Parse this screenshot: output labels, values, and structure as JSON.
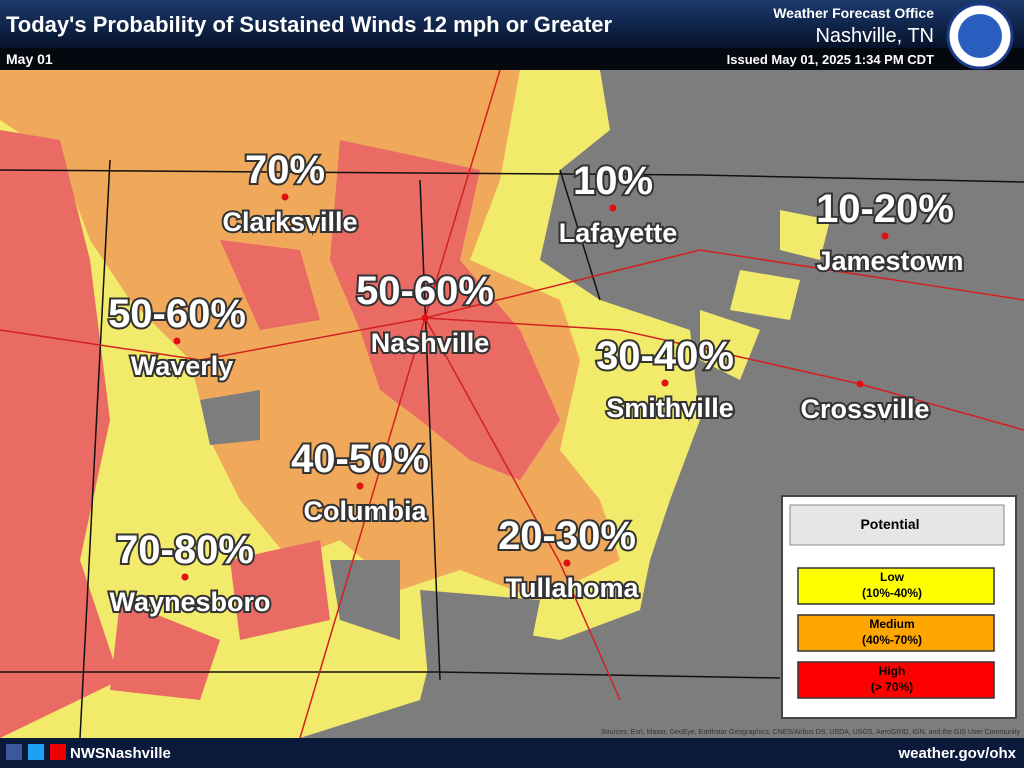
{
  "header": {
    "title": "Today's Probability of Sustained Winds 12 mph or Greater",
    "date": "May 01",
    "office": "Weather Forecast Office",
    "location": "Nashville, TN",
    "issued": "Issued May 01, 2025 1:34 PM CDT"
  },
  "cities": [
    {
      "name": "Clarksville",
      "probability": "70%"
    },
    {
      "name": "Lafayette",
      "probability": "10%"
    },
    {
      "name": "Jamestown",
      "probability": "10-20%"
    },
    {
      "name": "Nashville",
      "probability": "50-60%"
    },
    {
      "name": "Waverly",
      "probability": "50-60%"
    },
    {
      "name": "Smithville",
      "probability": "30-40%"
    },
    {
      "name": "Crossville"
    },
    {
      "name": "Columbia",
      "probability": "40-50%"
    },
    {
      "name": "Tullahoma",
      "probability": "20-30%"
    },
    {
      "name": "Waynesboro",
      "probability": "70-80%"
    }
  ],
  "legend": {
    "title": "Potential",
    "items": [
      {
        "label": "Low",
        "range": "(10%-40%)"
      },
      {
        "label": "Medium",
        "range": "(40%-70%)"
      },
      {
        "label": "High",
        "range": "(> 70%)"
      }
    ]
  },
  "footer": {
    "social": "NWSNashville",
    "website": "weather.gov/ohx",
    "attribution": "Sources: Esri, Maxar, GeoEye, Earthstar Geographics, CNES/Airbus DS, USDA, USGS, AeroGRID, IGN, and the GIS User Community"
  }
}
